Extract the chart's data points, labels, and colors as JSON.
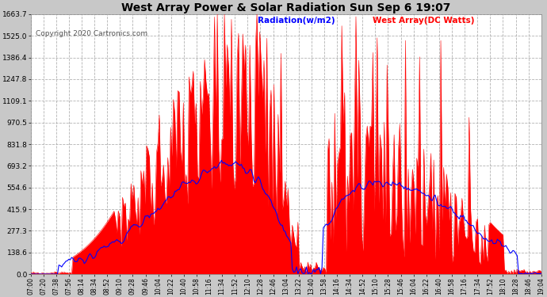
{
  "title": "West Array Power & Solar Radiation Sun Sep 6 19:07",
  "copyright": "Copyright 2020 Cartronics.com",
  "legend_radiation": "Radiation(w/m2)",
  "legend_west": "West Array(DC Watts)",
  "y_max": 1663.7,
  "y_ticks": [
    0.0,
    138.6,
    277.3,
    415.9,
    554.6,
    693.2,
    831.8,
    970.5,
    1109.1,
    1247.8,
    1386.4,
    1525.0,
    1663.7
  ],
  "background_color": "#c8c8c8",
  "plot_bg_color": "#ffffff",
  "grid_color": "#aaaaaa",
  "red_color": "#ff0000",
  "blue_color": "#0000ff",
  "x_labels": [
    "07:00",
    "07:20",
    "07:38",
    "07:56",
    "08:14",
    "08:34",
    "08:52",
    "09:10",
    "09:28",
    "09:46",
    "10:04",
    "10:22",
    "10:40",
    "10:58",
    "11:16",
    "11:34",
    "11:52",
    "12:10",
    "12:28",
    "12:46",
    "13:04",
    "13:22",
    "13:40",
    "13:58",
    "14:16",
    "14:34",
    "14:52",
    "15:10",
    "15:28",
    "15:46",
    "16:04",
    "16:22",
    "16:40",
    "16:58",
    "17:16",
    "17:34",
    "17:52",
    "18:10",
    "18:28",
    "18:46",
    "19:04"
  ]
}
